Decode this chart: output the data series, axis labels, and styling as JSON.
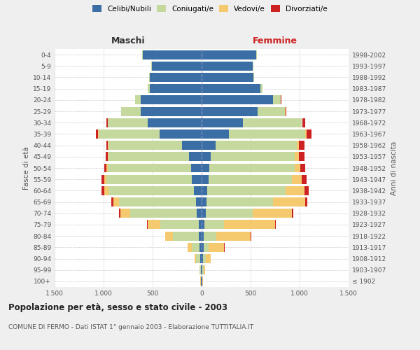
{
  "age_groups": [
    "100+",
    "95-99",
    "90-94",
    "85-89",
    "80-84",
    "75-79",
    "70-74",
    "65-69",
    "60-64",
    "55-59",
    "50-54",
    "45-49",
    "40-44",
    "35-39",
    "30-34",
    "25-29",
    "20-24",
    "15-19",
    "10-14",
    "5-9",
    "0-4"
  ],
  "birth_years": [
    "≤ 1902",
    "1903-1907",
    "1908-1912",
    "1913-1917",
    "1918-1922",
    "1923-1927",
    "1928-1932",
    "1933-1937",
    "1938-1942",
    "1943-1947",
    "1948-1952",
    "1953-1957",
    "1958-1962",
    "1963-1967",
    "1968-1972",
    "1973-1977",
    "1978-1982",
    "1983-1987",
    "1988-1992",
    "1993-1997",
    "1998-2002"
  ],
  "males": {
    "celibi": [
      5,
      10,
      15,
      20,
      30,
      30,
      50,
      60,
      80,
      100,
      110,
      130,
      200,
      430,
      550,
      620,
      620,
      530,
      530,
      510,
      600
    ],
    "coniugati": [
      5,
      10,
      40,
      80,
      260,
      390,
      680,
      780,
      870,
      870,
      850,
      820,
      750,
      620,
      410,
      200,
      60,
      20,
      5,
      5,
      5
    ],
    "vedovi": [
      2,
      5,
      15,
      40,
      80,
      130,
      100,
      60,
      40,
      20,
      10,
      10,
      5,
      5,
      0,
      0,
      0,
      0,
      0,
      0,
      0
    ],
    "divorziati": [
      0,
      0,
      0,
      5,
      5,
      10,
      10,
      20,
      30,
      35,
      25,
      20,
      20,
      25,
      10,
      5,
      0,
      0,
      0,
      0,
      0
    ]
  },
  "females": {
    "nubili": [
      5,
      10,
      15,
      20,
      20,
      30,
      40,
      50,
      60,
      70,
      80,
      90,
      140,
      280,
      420,
      570,
      730,
      600,
      530,
      520,
      560
    ],
    "coniugate": [
      5,
      10,
      30,
      50,
      130,
      200,
      480,
      680,
      800,
      850,
      870,
      860,
      830,
      780,
      600,
      280,
      80,
      20,
      5,
      5,
      5
    ],
    "vedove": [
      5,
      15,
      50,
      160,
      350,
      520,
      400,
      330,
      190,
      100,
      60,
      40,
      20,
      10,
      5,
      5,
      0,
      0,
      0,
      0,
      0
    ],
    "divorziate": [
      0,
      0,
      0,
      5,
      5,
      10,
      15,
      20,
      40,
      50,
      50,
      60,
      60,
      50,
      30,
      10,
      5,
      0,
      0,
      0,
      0
    ]
  },
  "colors": {
    "celibi": "#3a6ea5",
    "coniugati": "#c5d89e",
    "vedovi": "#f5c96e",
    "divorziati": "#cc2222"
  },
  "xlim": 1500,
  "tick_positions": [
    -1500,
    -1000,
    -500,
    0,
    500,
    1000,
    1500
  ],
  "tick_labels": [
    "1.500",
    "1.000",
    "500",
    "0",
    "500",
    "1.000",
    "1.500"
  ],
  "title": "Popolazione per età, sesso e stato civile - 2003",
  "subtitle": "COMUNE DI FERMO - Dati ISTAT 1° gennaio 2003 - Elaborazione TUTTITALIA.IT",
  "ylabel_left": "Fasce di età",
  "ylabel_right": "Anni di nascita",
  "label_maschi": "Maschi",
  "label_femmine": "Femmine",
  "legend_labels": [
    "Celibi/Nubili",
    "Coniugati/e",
    "Vedovi/e",
    "Divorziati/e"
  ],
  "bg_color": "#efefef",
  "plot_bg": "#ffffff"
}
